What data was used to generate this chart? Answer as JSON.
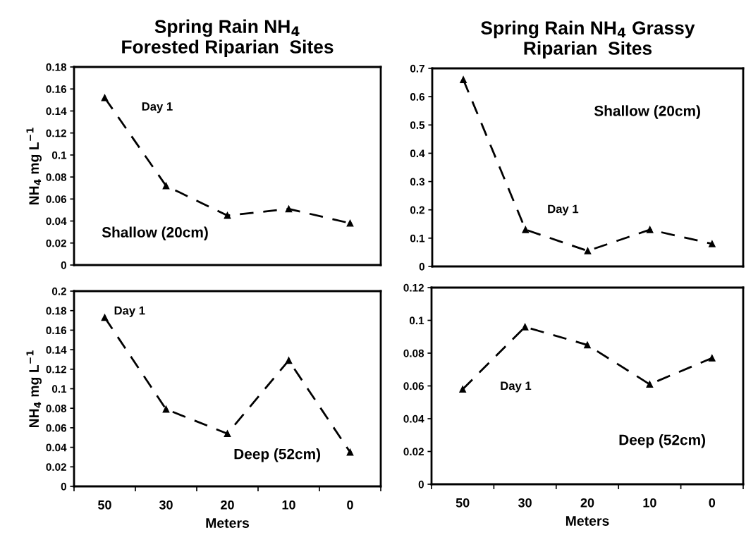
{
  "chart_data": [
    {
      "type": "line",
      "title": "Spring Rain NH$_{4}$\nForested Riparian  Sites",
      "ylabel": "NH$_{4}$ mg L$^{−1}$",
      "categories": [
        "50",
        "30",
        "20",
        "10",
        "0"
      ],
      "tick_labels": "y",
      "annotations": [
        "Day 1",
        "Shallow (20cm)"
      ],
      "series": [
        {
          "color": "#000000",
          "values": [
            0.152,
            0.072,
            0.045,
            0.051,
            0.038
          ]
        }
      ],
      "ylim": [
        0,
        0.18
      ],
      "yticks": [
        0,
        0.02,
        0.04,
        0.06,
        0.08,
        0.1,
        0.12,
        0.14,
        0.16,
        0.18
      ],
      "marker": "triangle",
      "line_style": "dashed",
      "grid": false
    },
    {
      "type": "line",
      "title": "Spring Rain NH$_{4}$ Grassy\nRiparian  Sites",
      "categories": [
        "50",
        "30",
        "20",
        "10",
        "0"
      ],
      "tick_labels": "y",
      "annotations": [
        "Shallow (20cm)",
        "Day 1"
      ],
      "series": [
        {
          "color": "#000000",
          "values": [
            0.66,
            0.13,
            0.055,
            0.13,
            0.08
          ]
        }
      ],
      "ylim": [
        0,
        0.7
      ],
      "yticks": [
        0,
        0.1,
        0.2,
        0.3,
        0.4,
        0.5,
        0.6,
        0.7
      ],
      "marker": "triangle",
      "line_style": "dashed",
      "grid": false
    },
    {
      "type": "line",
      "ylabel": "NH$_{4}$ mg L$^{−1}$",
      "xlabel": "Meters",
      "categories": [
        "50",
        "30",
        "20",
        "10",
        "0"
      ],
      "annotations": [
        "Day 1",
        "Deep (52cm)"
      ],
      "series": [
        {
          "color": "#000000",
          "values": [
            0.173,
            0.079,
            0.054,
            0.129,
            0.035
          ]
        }
      ],
      "ylim": [
        0,
        0.2
      ],
      "yticks": [
        0,
        0.02,
        0.04,
        0.06,
        0.08,
        0.1,
        0.12,
        0.14,
        0.16,
        0.18,
        0.2
      ],
      "marker": "triangle",
      "line_style": "dashed",
      "grid": false
    },
    {
      "type": "line",
      "xlabel": "Meters",
      "categories": [
        "50",
        "30",
        "20",
        "10",
        "0"
      ],
      "annotations": [
        "Day 1",
        "Deep (52cm)"
      ],
      "series": [
        {
          "color": "#000000",
          "values": [
            0.058,
            0.096,
            0.085,
            0.061,
            0.077
          ]
        }
      ],
      "ylim": [
        0,
        0.12
      ],
      "yticks": [
        0,
        0.02,
        0.04,
        0.06,
        0.08,
        0.1,
        0.12
      ],
      "marker": "triangle",
      "line_style": "dashed",
      "grid": false
    }
  ]
}
